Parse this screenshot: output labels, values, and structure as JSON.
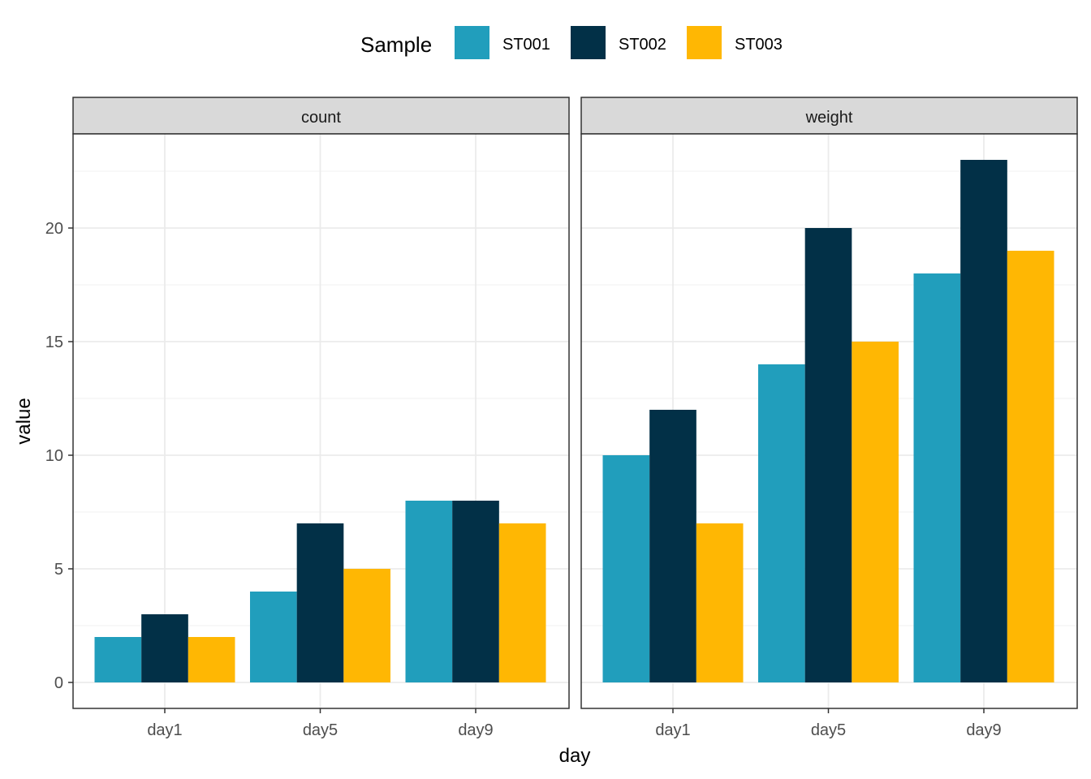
{
  "chart_data": {
    "type": "bar",
    "layout": "facet-wrap",
    "legend": {
      "title": "Sample",
      "position": "top",
      "entries": [
        {
          "name": "ST001",
          "color": "#219ebc"
        },
        {
          "name": "ST002",
          "color": "#023047"
        },
        {
          "name": "ST003",
          "color": "#ffb703"
        }
      ]
    },
    "xlabel": "day",
    "ylabel": "value",
    "ylim": [
      0,
      23
    ],
    "yticks": [
      0,
      5,
      10,
      15,
      20
    ],
    "categories": [
      "day1",
      "day5",
      "day9"
    ],
    "grid": true,
    "facets": [
      {
        "label": "count",
        "series": [
          {
            "name": "ST001",
            "values": [
              2,
              4,
              8
            ]
          },
          {
            "name": "ST002",
            "values": [
              3,
              7,
              8
            ]
          },
          {
            "name": "ST003",
            "values": [
              2,
              5,
              7
            ]
          }
        ]
      },
      {
        "label": "weight",
        "series": [
          {
            "name": "ST001",
            "values": [
              10,
              14,
              18
            ]
          },
          {
            "name": "ST002",
            "values": [
              12,
              20,
              23
            ]
          },
          {
            "name": "ST003",
            "values": [
              7,
              15,
              19
            ]
          }
        ]
      }
    ]
  }
}
